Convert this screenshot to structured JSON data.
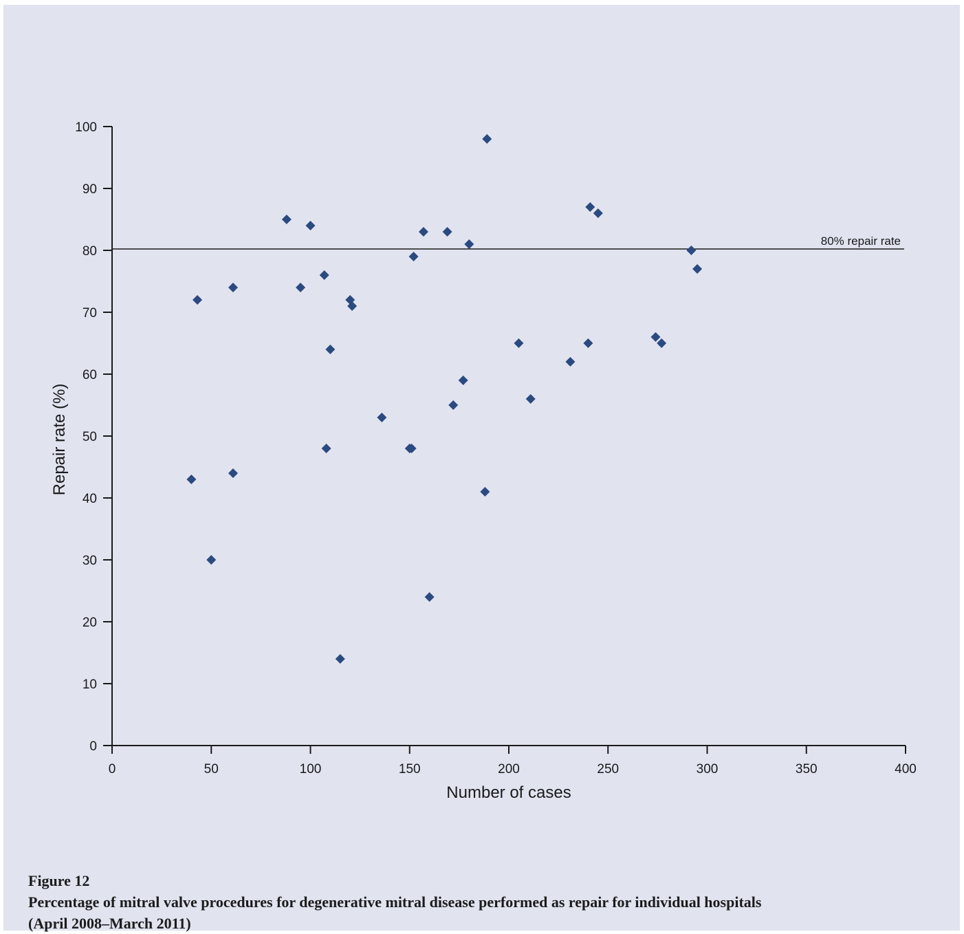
{
  "caption": {
    "figure_label": "Figure 12",
    "line1": "Percentage of mitral valve procedures for degenerative mitral disease performed as repair for individual hospitals",
    "line2": "(April 2008–March 2011)"
  },
  "colors": {
    "background": "#e1e3ef",
    "marker": "#2a4a80",
    "axis": "#1a1a1a"
  },
  "chart_data": {
    "type": "scatter",
    "title": "",
    "xlabel": "Number of cases",
    "ylabel": "Repair rate (%)",
    "xlim": [
      0,
      400
    ],
    "ylim": [
      0,
      100
    ],
    "xticks": [
      0,
      50,
      100,
      150,
      200,
      250,
      300,
      350,
      400
    ],
    "yticks": [
      0,
      10,
      20,
      30,
      40,
      50,
      60,
      70,
      80,
      90,
      100
    ],
    "grid": false,
    "marker": "diamond",
    "reference_line": {
      "y": 80,
      "label": "80% repair rate"
    },
    "points": [
      {
        "x": 40,
        "y": 43
      },
      {
        "x": 43,
        "y": 72
      },
      {
        "x": 50,
        "y": 30
      },
      {
        "x": 61,
        "y": 74
      },
      {
        "x": 61,
        "y": 44
      },
      {
        "x": 88,
        "y": 85
      },
      {
        "x": 95,
        "y": 74
      },
      {
        "x": 100,
        "y": 84
      },
      {
        "x": 107,
        "y": 76
      },
      {
        "x": 108,
        "y": 48
      },
      {
        "x": 110,
        "y": 64
      },
      {
        "x": 115,
        "y": 14
      },
      {
        "x": 120,
        "y": 72
      },
      {
        "x": 121,
        "y": 71
      },
      {
        "x": 136,
        "y": 53
      },
      {
        "x": 150,
        "y": 48
      },
      {
        "x": 151,
        "y": 48
      },
      {
        "x": 152,
        "y": 79
      },
      {
        "x": 157,
        "y": 83
      },
      {
        "x": 160,
        "y": 24
      },
      {
        "x": 169,
        "y": 83
      },
      {
        "x": 172,
        "y": 55
      },
      {
        "x": 177,
        "y": 59
      },
      {
        "x": 180,
        "y": 81
      },
      {
        "x": 188,
        "y": 41
      },
      {
        "x": 189,
        "y": 98
      },
      {
        "x": 205,
        "y": 65
      },
      {
        "x": 211,
        "y": 56
      },
      {
        "x": 231,
        "y": 62
      },
      {
        "x": 240,
        "y": 65
      },
      {
        "x": 241,
        "y": 87
      },
      {
        "x": 245,
        "y": 86
      },
      {
        "x": 274,
        "y": 66
      },
      {
        "x": 277,
        "y": 65
      },
      {
        "x": 292,
        "y": 80
      },
      {
        "x": 295,
        "y": 77
      }
    ]
  }
}
